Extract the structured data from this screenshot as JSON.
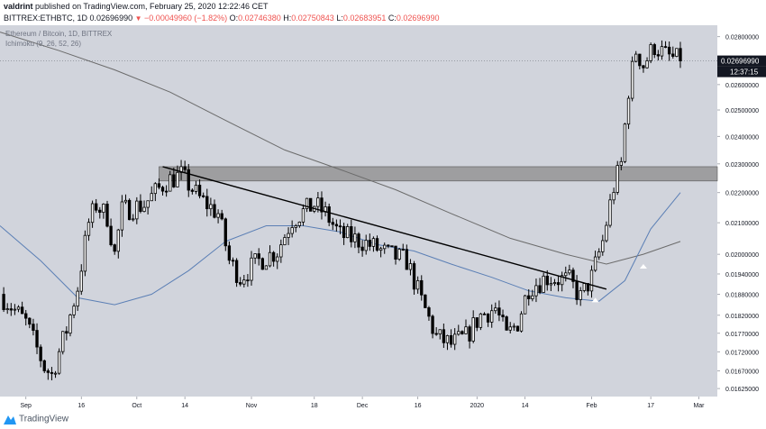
{
  "header": {
    "author": "valdrint",
    "published_text": "published on TradingView.com, February 25, 2020 12:22:46 CET",
    "symbol_line": "BITTREX:ETHBTC, 1D",
    "last": "0.02696990",
    "change": "−0.00049960 (−1.82%)",
    "o_label": "O:",
    "o": "0.02746380",
    "h_label": "H:",
    "h": "0.02750843",
    "l_label": "L:",
    "l": "0.02683951",
    "c_label": "C:",
    "c": "0.02696990"
  },
  "footer": {
    "brand": "TradingView"
  },
  "colors": {
    "background": "#d1d4dc",
    "candle": "#000000",
    "candle_up_fill": "#ffffff",
    "ma_fast": "#5b7fb5",
    "ma_slow": "#6b6b6b",
    "trendline": "#000000",
    "zone_fill": "#8c8c8c",
    "price_label_bg": "#131722"
  },
  "chart_data": {
    "type": "candlestick",
    "title": "Ethereum / Bitcoin, 1D, BITTREX",
    "indicator_label": "Ichimoku (9, 26, 52, 26)",
    "last_price_label": "0.02696990",
    "countdown_label": "12:37:15",
    "yticks": [
      "0.02800000",
      "0.02700000",
      "0.02600000",
      "0.02500000",
      "0.02400000",
      "0.02300000",
      "0.02200000",
      "0.02100000",
      "0.02000000",
      "0.01940000",
      "0.01880000",
      "0.01820000",
      "0.01770000",
      "0.01720000",
      "0.01670000",
      "0.01625000"
    ],
    "yscale": "log",
    "ylim": [
      0.01605,
      0.0285
    ],
    "xticks": [
      {
        "label": "Sep",
        "date": "2019-09-01"
      },
      {
        "label": "16",
        "date": "2019-09-16"
      },
      {
        "label": "Oct",
        "date": "2019-10-01"
      },
      {
        "label": "14",
        "date": "2019-10-14"
      },
      {
        "label": "Nov",
        "date": "2019-11-01"
      },
      {
        "label": "18",
        "date": "2019-11-18"
      },
      {
        "label": "Dec",
        "date": "2019-12-01"
      },
      {
        "label": "16",
        "date": "2019-12-16"
      },
      {
        "label": "2020",
        "date": "2020-01-01"
      },
      {
        "label": "14",
        "date": "2020-01-14"
      },
      {
        "label": "Feb",
        "date": "2020-02-01"
      },
      {
        "label": "17",
        "date": "2020-02-17"
      },
      {
        "label": "Mar",
        "date": "2020-03-01"
      }
    ],
    "xlim": [
      "2019-08-25",
      "2020-03-06"
    ],
    "close_path": [
      [
        "2019-08-25",
        0.0188
      ],
      [
        "2019-09-01",
        0.018
      ],
      [
        "2019-09-06",
        0.0168
      ],
      [
        "2019-09-08",
        0.0166
      ],
      [
        "2019-09-12",
        0.0178
      ],
      [
        "2019-09-15",
        0.019
      ],
      [
        "2019-09-18",
        0.021
      ],
      [
        "2019-09-20",
        0.0216
      ],
      [
        "2019-09-23",
        0.0212
      ],
      [
        "2019-09-25",
        0.02
      ],
      [
        "2019-09-27",
        0.0214
      ],
      [
        "2019-10-03",
        0.0216
      ],
      [
        "2019-10-09",
        0.0224
      ],
      [
        "2019-10-13",
        0.0226
      ],
      [
        "2019-10-18",
        0.0218
      ],
      [
        "2019-10-23",
        0.0213
      ],
      [
        "2019-10-26",
        0.0198
      ],
      [
        "2019-10-29",
        0.0193
      ],
      [
        "2019-11-03",
        0.0198
      ],
      [
        "2019-11-08",
        0.0201
      ],
      [
        "2019-11-12",
        0.0211
      ],
      [
        "2019-11-18",
        0.0216
      ],
      [
        "2019-11-21",
        0.0213
      ],
      [
        "2019-11-25",
        0.0206
      ],
      [
        "2019-12-01",
        0.0204
      ],
      [
        "2019-12-08",
        0.02
      ],
      [
        "2019-12-13",
        0.0198
      ],
      [
        "2019-12-17",
        0.0186
      ],
      [
        "2019-12-21",
        0.0176
      ],
      [
        "2019-12-25",
        0.0174
      ],
      [
        "2019-12-29",
        0.0176
      ],
      [
        "2020-01-02",
        0.0182
      ],
      [
        "2020-01-06",
        0.0184
      ],
      [
        "2020-01-09",
        0.0176
      ],
      [
        "2020-01-12",
        0.018
      ],
      [
        "2020-01-15",
        0.019
      ],
      [
        "2020-01-20",
        0.0193
      ],
      [
        "2020-01-26",
        0.0192
      ],
      [
        "2020-01-29",
        0.0187
      ],
      [
        "2020-02-01",
        0.0193
      ],
      [
        "2020-02-04",
        0.0204
      ],
      [
        "2020-02-07",
        0.0222
      ],
      [
        "2020-02-09",
        0.023
      ],
      [
        "2020-02-11",
        0.0258
      ],
      [
        "2020-02-13",
        0.0274
      ],
      [
        "2020-02-15",
        0.0268
      ],
      [
        "2020-02-18",
        0.0276
      ],
      [
        "2020-02-21",
        0.0272
      ],
      [
        "2020-02-25",
        0.02697
      ]
    ],
    "ma_fast_path": [
      [
        "2019-08-25",
        0.0209
      ],
      [
        "2019-09-05",
        0.0198
      ],
      [
        "2019-09-15",
        0.0187
      ],
      [
        "2019-09-25",
        0.0185
      ],
      [
        "2019-10-05",
        0.0188
      ],
      [
        "2019-10-15",
        0.0195
      ],
      [
        "2019-10-25",
        0.0204
      ],
      [
        "2019-11-05",
        0.0209
      ],
      [
        "2019-11-15",
        0.0209
      ],
      [
        "2019-11-25",
        0.0207
      ],
      [
        "2019-12-05",
        0.0203
      ],
      [
        "2019-12-15",
        0.0201
      ],
      [
        "2019-12-25",
        0.0197
      ],
      [
        "2020-01-05",
        0.0193
      ],
      [
        "2020-01-15",
        0.0189
      ],
      [
        "2020-01-25",
        0.0187
      ],
      [
        "2020-02-03",
        0.0186
      ],
      [
        "2020-02-10",
        0.0192
      ],
      [
        "2020-02-17",
        0.0208
      ],
      [
        "2020-02-25",
        0.022
      ]
    ],
    "ma_slow_path": [
      [
        "2019-08-25",
        0.0282
      ],
      [
        "2019-09-10",
        0.0274
      ],
      [
        "2019-09-25",
        0.0266
      ],
      [
        "2019-10-10",
        0.0257
      ],
      [
        "2019-10-25",
        0.0246
      ],
      [
        "2019-11-10",
        0.0235
      ],
      [
        "2019-11-25",
        0.0228
      ],
      [
        "2019-12-10",
        0.0221
      ],
      [
        "2019-12-25",
        0.0213
      ],
      [
        "2020-01-10",
        0.0205
      ],
      [
        "2020-01-25",
        0.02
      ],
      [
        "2020-02-05",
        0.0197
      ],
      [
        "2020-02-15",
        0.02
      ],
      [
        "2020-02-25",
        0.0204
      ]
    ],
    "trendline": [
      [
        "2019-10-08",
        0.0229
      ],
      [
        "2020-02-05",
        0.01895
      ]
    ],
    "resistance_zone": [
      0.0224,
      0.0229
    ],
    "white_arrow_markers": [
      [
        "2020-02-02",
        0.0187
      ],
      [
        "2020-02-15",
        0.0197
      ]
    ]
  }
}
